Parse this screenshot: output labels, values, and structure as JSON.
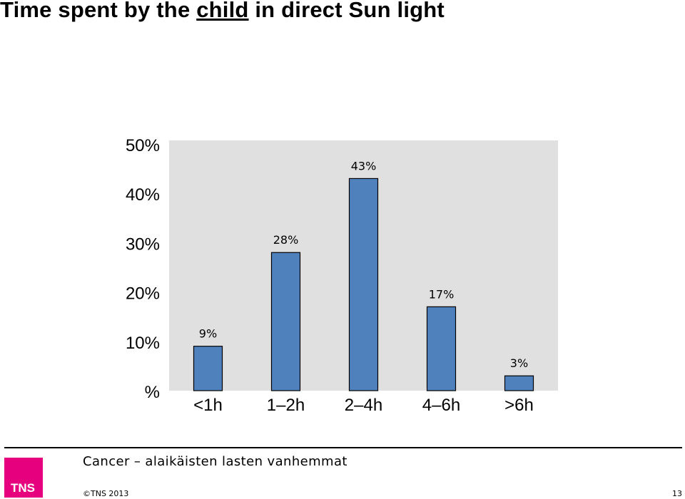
{
  "title": {
    "before": "Time spent by the ",
    "underlined": "child",
    "after": " in direct Sun light"
  },
  "chart_data": {
    "type": "bar",
    "title": "Time spent by the child in direct Sun light",
    "categories": [
      "<1h",
      "1–2h",
      "2–4h",
      "4–6h",
      ">6h"
    ],
    "values": [
      9,
      28,
      43,
      17,
      3
    ],
    "value_labels": [
      "9%",
      "28%",
      "43%",
      "17%",
      "3%"
    ],
    "y_tick_labels": [
      "%",
      "10%",
      "20%",
      "30%",
      "40%",
      "50%"
    ],
    "y_ticks": [
      0,
      10,
      20,
      30,
      40,
      50
    ],
    "ylim": [
      0,
      50
    ],
    "xlabel": "",
    "ylabel": "",
    "grid": false,
    "legend": "none",
    "colors": {
      "bar": "#4f81bd",
      "bar_border": "#000000",
      "plot_background": "#e0e0e0"
    }
  },
  "footer": {
    "subtitle": "Cancer – alaikäisten lasten vanhemmat",
    "copyright": "©TNS 2013",
    "page_number": "13",
    "logo_text": "TNS",
    "logo_color": "#e6007e"
  }
}
